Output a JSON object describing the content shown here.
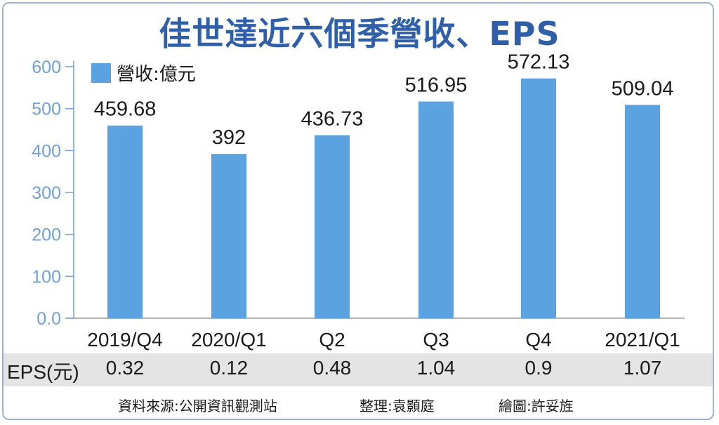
{
  "title": "佳世達近六個季營收、EPS",
  "legend": {
    "label": "營收:億元",
    "color": "#5ba3e0"
  },
  "chart_data": {
    "type": "bar",
    "title": "佳世達近六個季營收、EPS",
    "categories": [
      "2019/Q4",
      "2020/Q1",
      "Q2",
      "Q3",
      "Q4",
      "2021/Q1"
    ],
    "series": [
      {
        "name": "營收:億元",
        "values": [
          459.68,
          392,
          436.73,
          516.95,
          572.13,
          509.04
        ]
      }
    ],
    "value_labels": [
      "459.68",
      "392",
      "436.73",
      "516.95",
      "572.13",
      "509.04"
    ],
    "y_ticks": [
      "0.0",
      "100",
      "200",
      "300",
      "400",
      "500",
      "600"
    ],
    "ylim": [
      0,
      600
    ],
    "grid": false,
    "legend_position": "top-left",
    "bar_color": "#5ba3e0",
    "axis_color": "#6fa0d8"
  },
  "eps": {
    "label": "EPS(元)",
    "values": [
      "0.32",
      "0.12",
      "0.48",
      "1.04",
      "0.9",
      "1.07"
    ]
  },
  "footer": {
    "source": "資料來源:公開資訊觀測站",
    "editor": "整理:袁顥庭",
    "illustrator": "繪圖:許妥旌"
  }
}
